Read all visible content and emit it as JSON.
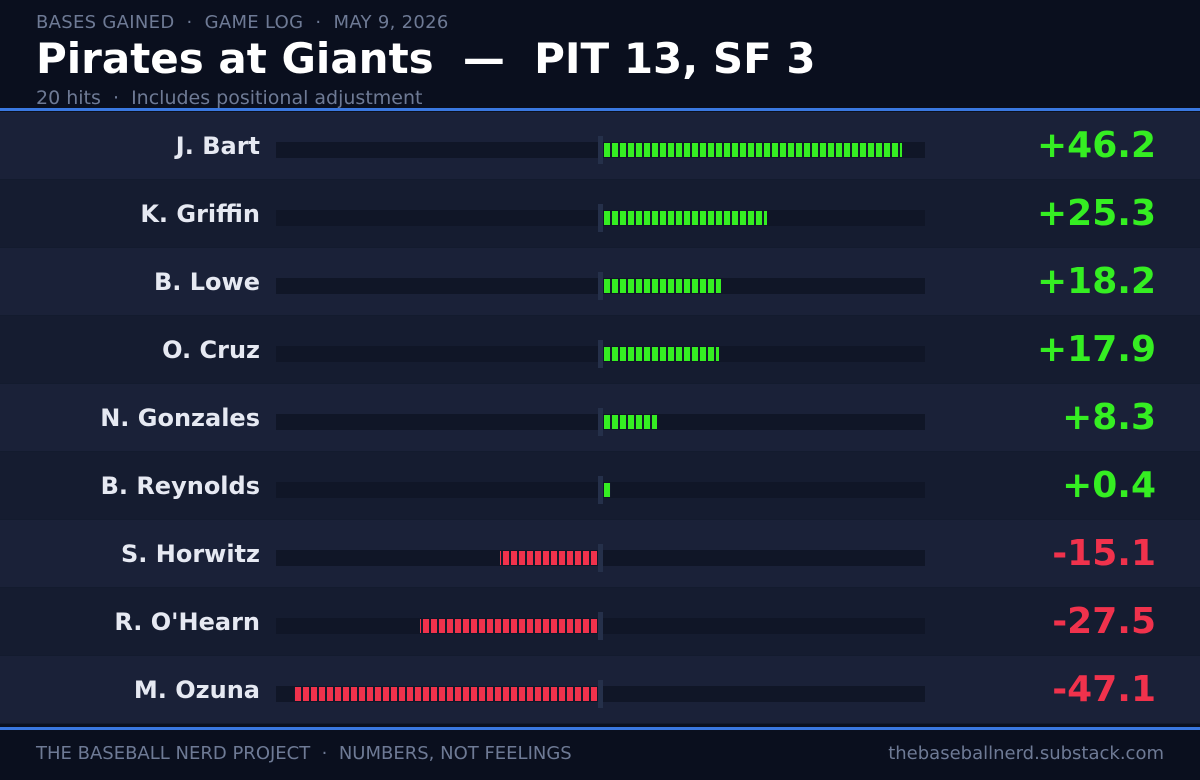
{
  "header": {
    "kicker": "BASES GAINED  ·  GAME LOG  ·  MAY 9, 2026",
    "title": "Pirates at Giants  —  PIT 13, SF 3",
    "subtitle": "20 hits  ·  Includes positional adjustment"
  },
  "footer": {
    "left": "THE BASEBALL NERD PROJECT  ·  NUMBERS, NOT FEELINGS",
    "right": "thebaseballnerd.substack.com"
  },
  "colors": {
    "positive": "#35ee22",
    "negative": "#f0324c",
    "accent": "#3a78e0"
  },
  "chart_data": {
    "type": "bar",
    "orientation": "horizontal-diverging",
    "title": "Pirates at Giants  —  PIT 13, SF 3",
    "subtitle": "20 hits  ·  Includes positional adjustment",
    "xlim": [
      -50,
      50
    ],
    "categories": [
      "J. Bart",
      "K. Griffin",
      "B. Lowe",
      "O. Cruz",
      "N. Gonzales",
      "B. Reynolds",
      "S. Horwitz",
      "R. O'Hearn",
      "M. Ozuna"
    ],
    "values": [
      46.2,
      25.3,
      18.2,
      17.9,
      8.3,
      0.4,
      -15.1,
      -27.5,
      -47.1
    ],
    "labels": [
      "+46.2",
      "+25.3",
      "+18.2",
      "+17.9",
      "+8.3",
      "+0.4",
      "-15.1",
      "-27.5",
      "-47.1"
    ],
    "grid": false,
    "legend": "none"
  }
}
